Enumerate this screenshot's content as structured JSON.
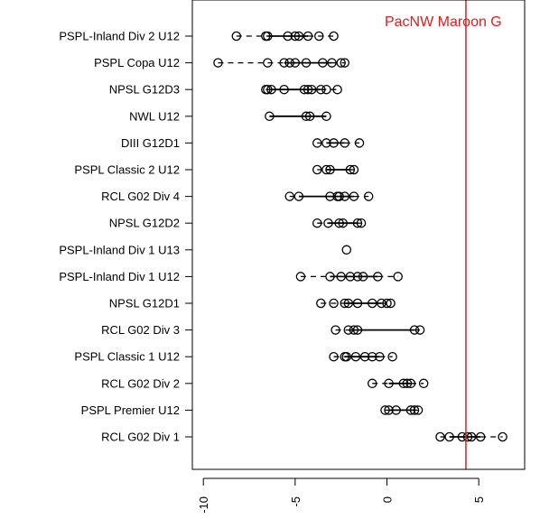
{
  "chart_data": {
    "type": "scatter",
    "title": "",
    "xlabel": "",
    "ylabel": "",
    "xlim": [
      -10.6,
      7.5
    ],
    "xticks": [
      -10,
      -5,
      0,
      5
    ],
    "xtick_labels": [
      "-10",
      "-5",
      "0",
      "5"
    ],
    "grid": false,
    "categories": [
      "PSPL-Inland Div 2 U12",
      "PSPL Copa U12",
      "NPSL G12D3",
      "NWL U12",
      "DIII G12D1",
      "PSPL Classic 2 U12",
      "RCL G02 Div 4",
      "NPSL G12D2",
      "PSPL-Inland Div 1 U13",
      "PSPL-Inland Div 1 U12",
      "NPSL G12D1",
      "RCL G02 Div 3",
      "PSPL Classic 1 U12",
      "RCL G02 Div 2",
      "PSPL Premier U12",
      "RCL G02 Div 1"
    ],
    "series": [
      {
        "category": "PSPL-Inland Div 2 U12",
        "values": [
          -8.2,
          -6.6,
          -6.5,
          -5.4,
          -5.0,
          -4.8,
          -4.3,
          -3.7,
          -2.9
        ]
      },
      {
        "category": "PSPL Copa U12",
        "values": [
          -9.2,
          -6.5,
          -5.6,
          -5.3,
          -5.0,
          -4.4,
          -3.5,
          -3.0,
          -2.5,
          -2.3
        ]
      },
      {
        "category": "NPSL G12D3",
        "values": [
          -6.6,
          -6.5,
          -6.3,
          -5.6,
          -4.5,
          -4.3,
          -4.1,
          -3.6,
          -3.3,
          -2.7
        ]
      },
      {
        "category": "NWL U12",
        "values": [
          -6.4,
          -4.4,
          -4.2,
          -3.3
        ]
      },
      {
        "category": "DIII G12D1",
        "values": [
          -3.8,
          -3.3,
          -2.9,
          -2.3,
          -1.5
        ]
      },
      {
        "category": "PSPL Classic 2 U12",
        "values": [
          -3.8,
          -3.3,
          -3.1,
          -2.0,
          -1.8
        ]
      },
      {
        "category": "RCL G02 Div 4",
        "values": [
          -5.3,
          -4.8,
          -3.1,
          -2.7,
          -2.6,
          -2.3,
          -1.8,
          -1.0
        ]
      },
      {
        "category": "NPSL G12D2",
        "values": [
          -3.8,
          -3.2,
          -2.6,
          -2.4,
          -1.6,
          -1.4
        ]
      },
      {
        "category": "PSPL-Inland Div 1 U13",
        "values": [
          -2.2
        ]
      },
      {
        "category": "PSPL-Inland Div 1 U12",
        "values": [
          -4.7,
          -3.1,
          -2.5,
          -2.0,
          -1.6,
          -1.3,
          -0.5,
          0.6
        ]
      },
      {
        "category": "NPSL G12D1",
        "values": [
          -3.6,
          -2.9,
          -2.3,
          -2.1,
          -1.6,
          -0.8,
          -0.3,
          0.0,
          0.2
        ]
      },
      {
        "category": "RCL G02 Div 3",
        "values": [
          -2.8,
          -2.1,
          -1.8,
          -1.6,
          1.5,
          1.8
        ]
      },
      {
        "category": "PSPL Classic 1 U12",
        "values": [
          -2.9,
          -2.3,
          -2.2,
          -1.7,
          -1.2,
          -0.8,
          -0.4,
          0.3
        ]
      },
      {
        "category": "RCL G02 Div 2",
        "values": [
          -0.8,
          0.1,
          0.9,
          1.1,
          1.3,
          2.0
        ]
      },
      {
        "category": "PSPL Premier U12",
        "values": [
          -0.1,
          0.1,
          0.5,
          1.3,
          1.5,
          1.7
        ]
      },
      {
        "category": "RCL G02 Div 1",
        "values": [
          2.9,
          3.4,
          4.1,
          4.4,
          4.6,
          5.1,
          6.3
        ]
      }
    ],
    "reference_line": {
      "label": "PacNW Maroon G",
      "x": 4.3,
      "color": "#e41a1c"
    },
    "colors": {
      "points": "#000000",
      "reference": "#e41a1c",
      "frame": "#000000"
    }
  }
}
